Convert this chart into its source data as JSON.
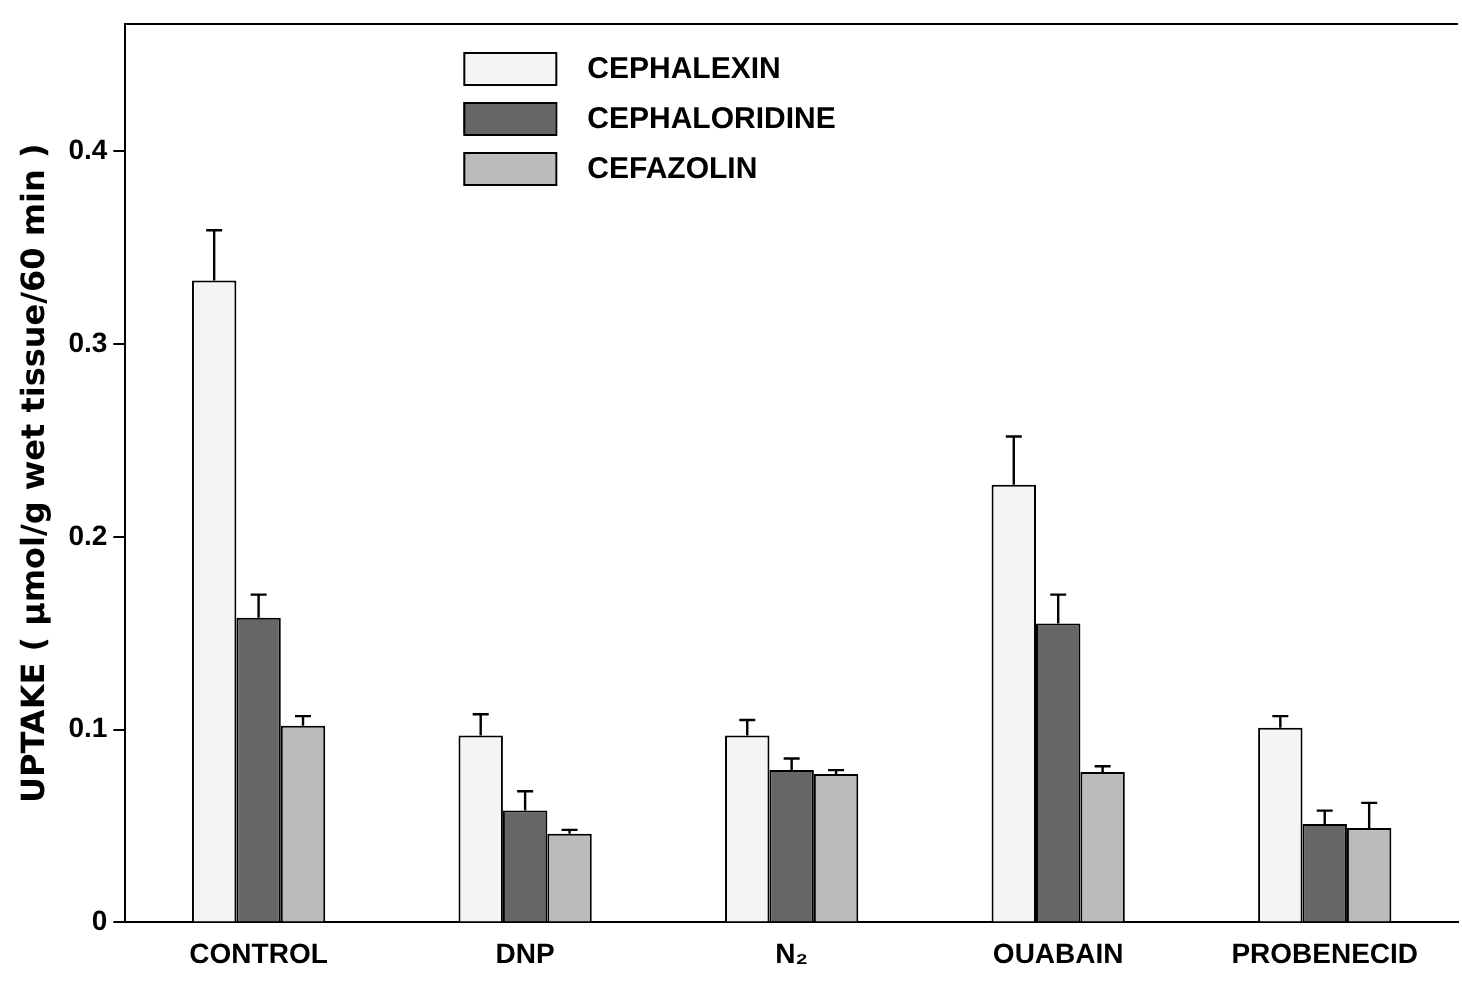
{
  "chart_data": {
    "type": "bar",
    "ylabel": "UPTAKE ( μmol/g wet tissue/60 min )",
    "categories": [
      "CONTROL",
      "DNP",
      "N₂",
      "OUABAIN",
      "PROBENECID"
    ],
    "series": [
      {
        "name": "CEPHALEXIN",
        "color": "#f4f4f4",
        "values": [
          0.333,
          0.097,
          0.097,
          0.227,
          0.101
        ],
        "errors": [
          0.026,
          0.011,
          0.008,
          0.025,
          0.006
        ]
      },
      {
        "name": "CEPHALORIDINE",
        "color": "#666666",
        "values": [
          0.158,
          0.058,
          0.079,
          0.155,
          0.051
        ],
        "errors": [
          0.012,
          0.01,
          0.006,
          0.015,
          0.007
        ]
      },
      {
        "name": "CEFAZOLIN",
        "color": "#bbbbbb",
        "values": [
          0.102,
          0.046,
          0.077,
          0.078,
          0.049
        ],
        "errors": [
          0.005,
          0.002,
          0.002,
          0.003,
          0.013
        ]
      }
    ],
    "ylim": [
      0,
      0.466
    ],
    "yticks": [
      0,
      0.1,
      0.2,
      0.3,
      0.4
    ],
    "grid": false,
    "legend": "top left"
  }
}
